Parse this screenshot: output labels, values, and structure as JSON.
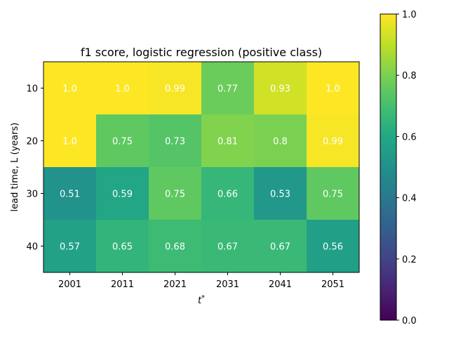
{
  "chart_data": {
    "type": "heatmap",
    "title": "f1 score, logistic regression (positive class)",
    "xlabel": "t*",
    "ylabel": "lead time, L (years)",
    "x_categories": [
      "2001",
      "2011",
      "2021",
      "2031",
      "2041",
      "2051"
    ],
    "y_categories": [
      "10",
      "20",
      "30",
      "40"
    ],
    "values": [
      [
        1.0,
        1.0,
        0.99,
        0.77,
        0.93,
        1.0
      ],
      [
        1.0,
        0.75,
        0.73,
        0.81,
        0.8,
        0.99
      ],
      [
        0.51,
        0.59,
        0.75,
        0.66,
        0.53,
        0.75
      ],
      [
        0.57,
        0.65,
        0.68,
        0.67,
        0.67,
        0.56
      ]
    ],
    "cell_labels": [
      [
        "1.0",
        "1.0",
        "0.99",
        "0.77",
        "0.93",
        "1.0"
      ],
      [
        "1.0",
        "0.75",
        "0.73",
        "0.81",
        "0.8",
        "0.99"
      ],
      [
        "0.51",
        "0.59",
        "0.75",
        "0.66",
        "0.53",
        "0.75"
      ],
      [
        "0.57",
        "0.65",
        "0.68",
        "0.67",
        "0.67",
        "0.56"
      ]
    ],
    "colormap": "viridis",
    "colorbar": {
      "range": [
        0.0,
        1.0
      ],
      "ticks": [
        "0.0",
        "0.2",
        "0.4",
        "0.6",
        "0.8",
        "1.0"
      ]
    },
    "grid": false
  }
}
